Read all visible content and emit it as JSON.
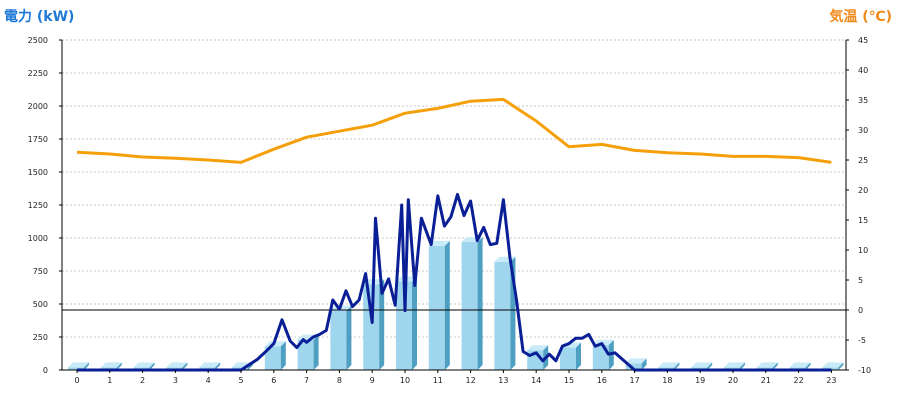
{
  "left_axis_title": "電力 (kW)",
  "right_axis_title": "気温 (℃)",
  "chart_data": {
    "type": "bar",
    "categories": [
      "0",
      "1",
      "2",
      "3",
      "4",
      "5",
      "6",
      "7",
      "8",
      "9",
      "10",
      "11",
      "12",
      "13",
      "14",
      "15",
      "16",
      "17",
      "18",
      "19",
      "20",
      "21",
      "22",
      "23"
    ],
    "series": [
      {
        "type": "bar",
        "axis": "left",
        "values": [
          20,
          20,
          20,
          20,
          20,
          20,
          180,
          230,
          450,
          650,
          670,
          940,
          970,
          820,
          150,
          170,
          190,
          50,
          20,
          20,
          20,
          20,
          20,
          20
        ]
      },
      {
        "type": "line",
        "axis": "left",
        "x": [
          0,
          5,
          5.5,
          5.8,
          6,
          6.25,
          6.5,
          6.7,
          6.9,
          7,
          7.2,
          7.4,
          7.6,
          7.8,
          8,
          8.2,
          8.4,
          8.6,
          8.8,
          9,
          9.1,
          9.3,
          9.5,
          9.7,
          9.9,
          10,
          10.1,
          10.3,
          10.5,
          10.8,
          11,
          11.2,
          11.4,
          11.6,
          11.8,
          12,
          12.2,
          12.4,
          12.6,
          12.8,
          13,
          13.2,
          13.4,
          13.6,
          13.8,
          14,
          14.2,
          14.4,
          14.6,
          14.8,
          15,
          15.2,
          15.4,
          15.6,
          15.8,
          16,
          16.2,
          16.4,
          17,
          23
        ],
        "values": [
          0,
          0,
          80,
          150,
          200,
          380,
          220,
          170,
          230,
          210,
          250,
          270,
          300,
          530,
          460,
          600,
          480,
          530,
          730,
          360,
          1150,
          580,
          690,
          490,
          1250,
          450,
          1290,
          640,
          1150,
          950,
          1320,
          1090,
          1160,
          1330,
          1170,
          1280,
          980,
          1080,
          950,
          960,
          1290,
          850,
          530,
          140,
          110,
          130,
          70,
          120,
          70,
          180,
          200,
          240,
          240,
          270,
          180,
          200,
          120,
          130,
          0,
          0
        ]
      },
      {
        "type": "line",
        "axis": "right",
        "x": [
          0,
          1,
          2,
          3,
          4,
          5,
          6,
          7,
          8,
          9,
          10,
          11,
          12,
          13,
          14,
          15,
          16,
          17,
          18,
          19,
          20,
          21,
          22,
          23
        ],
        "values": [
          26.3,
          26,
          25.5,
          25.3,
          25,
          24.6,
          26.8,
          28.8,
          29.8,
          30.8,
          32.8,
          33.6,
          34.8,
          35.1,
          31.5,
          27.2,
          27.6,
          26.6,
          26.2,
          26,
          25.6,
          25.6,
          25.4,
          24.6
        ]
      }
    ],
    "y_left": {
      "range": [
        0,
        2500
      ],
      "ticks": [
        "0",
        "250",
        "500",
        "750",
        "1000",
        "1250",
        "1500",
        "1750",
        "2000",
        "2250",
        "2500"
      ]
    },
    "y_right": {
      "range": [
        -10,
        45
      ],
      "ticks": [
        "-10",
        "-5",
        "0",
        "5",
        "10",
        "15",
        "20",
        "25",
        "30",
        "35",
        "40",
        "45"
      ]
    },
    "grid": true,
    "colors": {
      "bar_face": "#9fd6ee",
      "bar_side": "#4f9fc2",
      "bar_top": "#c9ebf8",
      "power_line": "#0a1f96",
      "temp_line": "#f5a00a",
      "left_title": "#1f7ad6",
      "right_title": "#f08a1c",
      "grid": "#c8c8c8"
    }
  }
}
